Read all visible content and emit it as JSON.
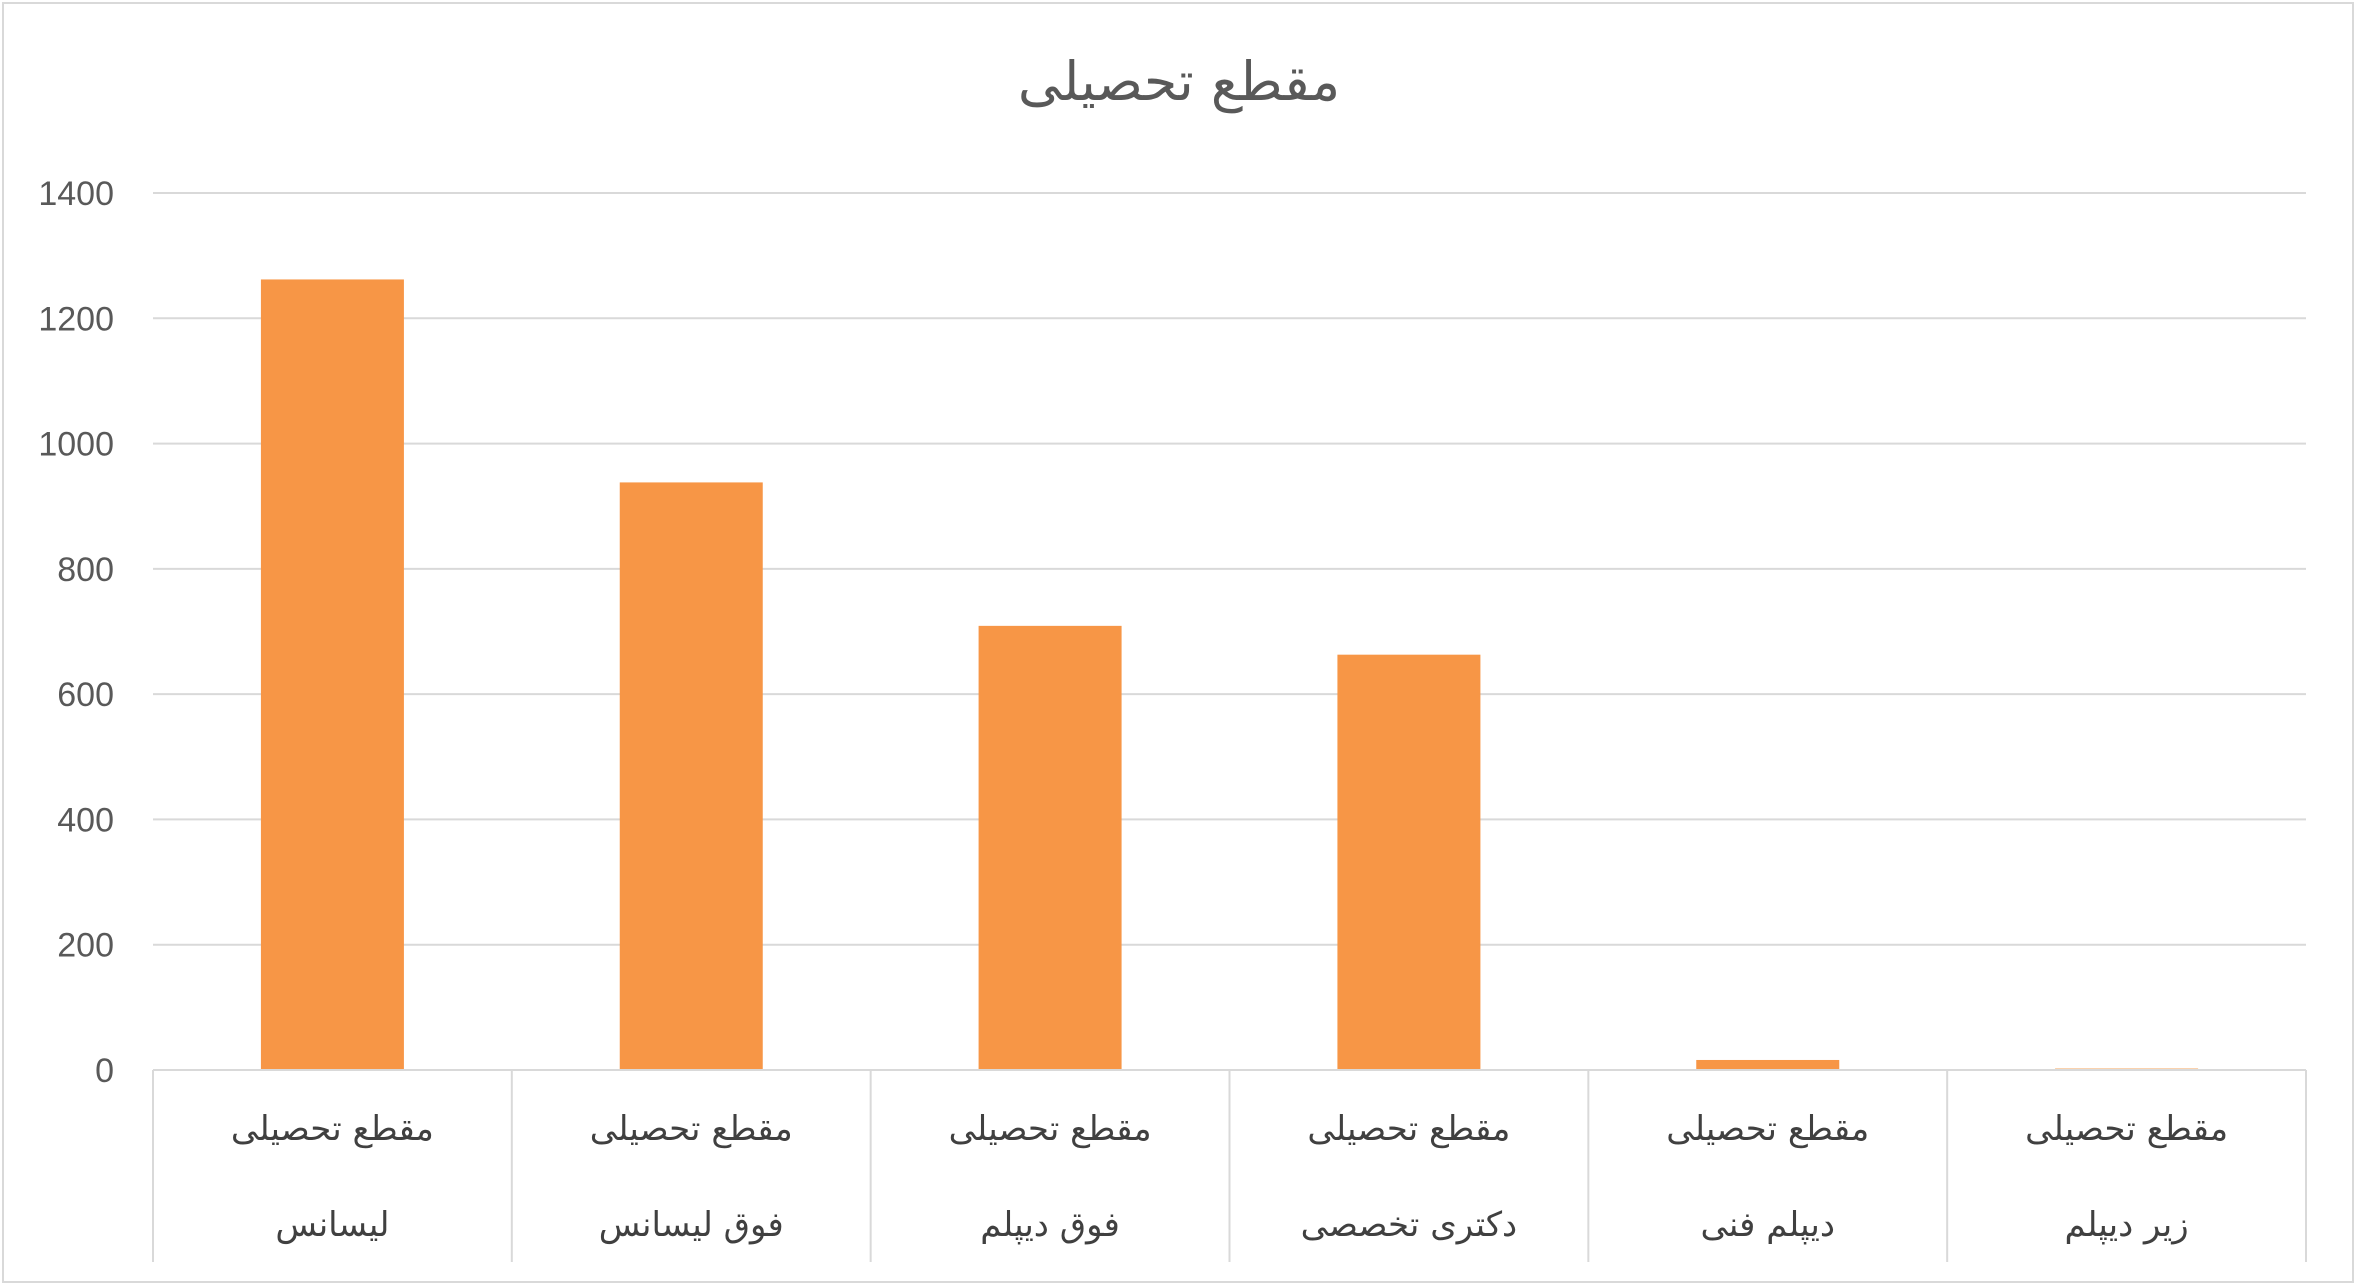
{
  "chart_data": {
    "type": "bar",
    "title": "مقطع تحصیلی",
    "categories": [
      [
        "مقطع تحصیلی",
        "لیسانس"
      ],
      [
        "مقطع تحصیلی",
        "فوق لیسانس"
      ],
      [
        "مقطع تحصیلی",
        "فوق دیپلم"
      ],
      [
        "مقطع تحصیلی",
        "دکتری تخصصی"
      ],
      [
        "مقطع تحصیلی",
        "دیپلم فنی"
      ],
      [
        "مقطع تحصیلی",
        "زیر دیپلم"
      ]
    ],
    "values": [
      1262,
      938,
      709,
      663,
      16,
      2
    ],
    "xlabel": "",
    "ylabel": "",
    "ylim": [
      0,
      1400
    ],
    "yticks": [
      0,
      200,
      400,
      600,
      800,
      1000,
      1200,
      1400
    ],
    "grid": true,
    "legend": "none",
    "colors": {
      "bar": "#F79646",
      "last_bar": "#FAD2AE",
      "grid": "#d9d9d9",
      "text": "#595959"
    }
  }
}
